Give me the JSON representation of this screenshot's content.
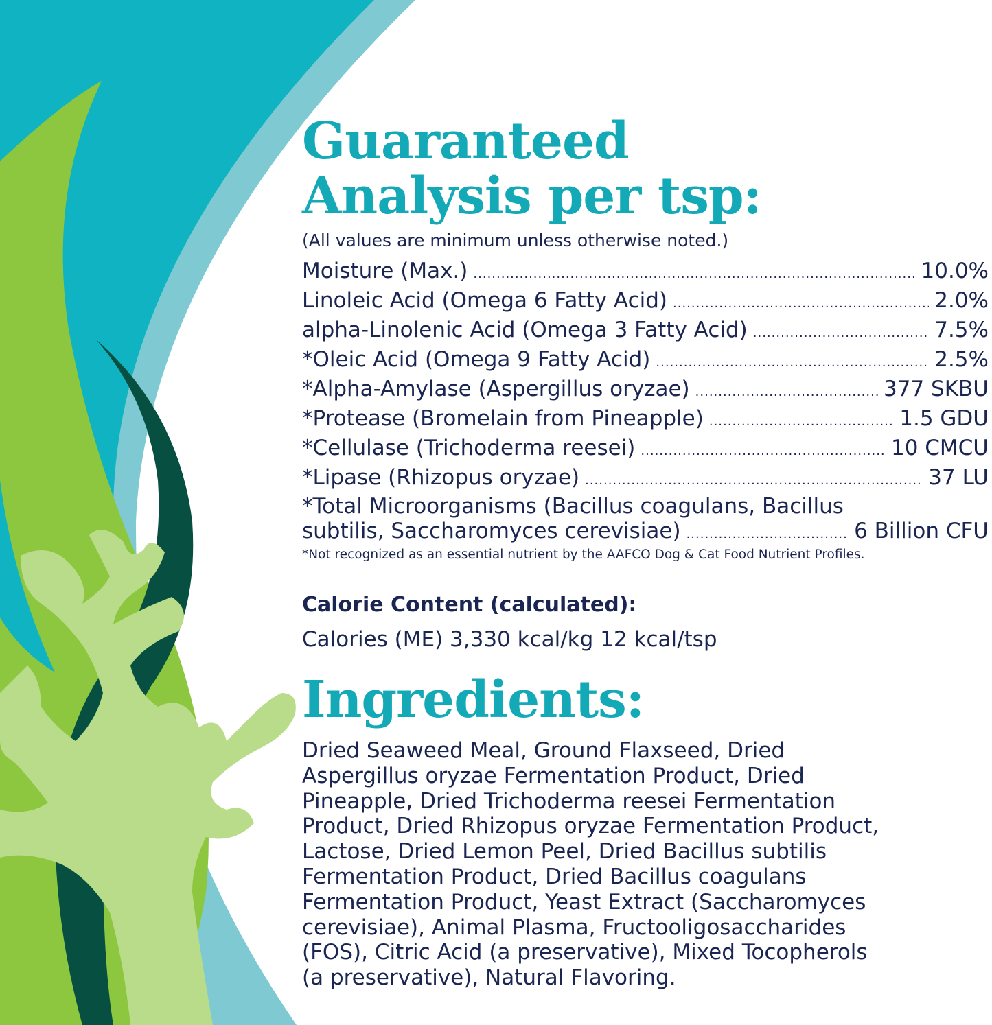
{
  "colors": {
    "teal": "#10b3c1",
    "light_band": "#7fcad2",
    "heading": "#14a9b6",
    "text": "#1b2552",
    "leaf_green": "#8dc63f",
    "leaf_dark": "#064f41",
    "leaf_light": "#b9dc8a"
  },
  "analysis": {
    "title_line1": "Guaranteed",
    "title_line2": "Analysis per tsp:",
    "note": "(All values are minimum unless otherwise noted.)",
    "rows": [
      {
        "label": "Moisture (Max.)",
        "value": "10.0%"
      },
      {
        "label": "Linoleic Acid (Omega 6 Fatty Acid)",
        "value": "2.0%"
      },
      {
        "label": "alpha-Linolenic Acid (Omega 3 Fatty Acid)",
        "value": "7.5%"
      },
      {
        "label": "*Oleic Acid (Omega 9 Fatty Acid)",
        "value": "2.5%"
      },
      {
        "label": "*Alpha-Amylase (Aspergillus oryzae)",
        "value": "377 SKBU"
      },
      {
        "label": "*Protease (Bromelain from Pineapple)",
        "value": "1.5 GDU"
      },
      {
        "label": "*Cellulase (Trichoderma reesei)",
        "value": "10 CMCU"
      },
      {
        "label": "*Lipase (Rhizopus oryzae)",
        "value": "37 LU"
      }
    ],
    "last_row": {
      "label_line1": "*Total Microorganisms (Bacillus coagulans, Bacillus",
      "label_line2": "subtilis, Saccharomyces cerevisiae)",
      "value": "6 Billion CFU"
    },
    "footnote": "*Not recognized as an essential nutrient by the AAFCO Dog & Cat Food Nutrient Profiles."
  },
  "calorie": {
    "title": "Calorie Content (calculated):",
    "text": "Calories (ME) 3,330 kcal/kg 12 kcal/tsp"
  },
  "ingredients": {
    "title": "Ingredients:",
    "lines": [
      "Dried Seaweed Meal, Ground Flaxseed, Dried",
      "Aspergillus oryzae Fermentation Product, Dried",
      "Pineapple, Dried Trichoderma reesei Fermentation",
      "Product, Dried Rhizopus oryzae Fermentation Product,",
      "Lactose, Dried Lemon Peel, Dried Bacillus subtilis",
      "Fermentation Product, Dried Bacillus coagulans",
      "Fermentation Product, Yeast Extract (Saccharomyces",
      "cerevisiae), Animal Plasma, Fructooligosaccharides",
      "(FOS), Citric Acid (a preservative), Mixed Tocopherols",
      "(a preservative), Natural Flavoring."
    ]
  }
}
